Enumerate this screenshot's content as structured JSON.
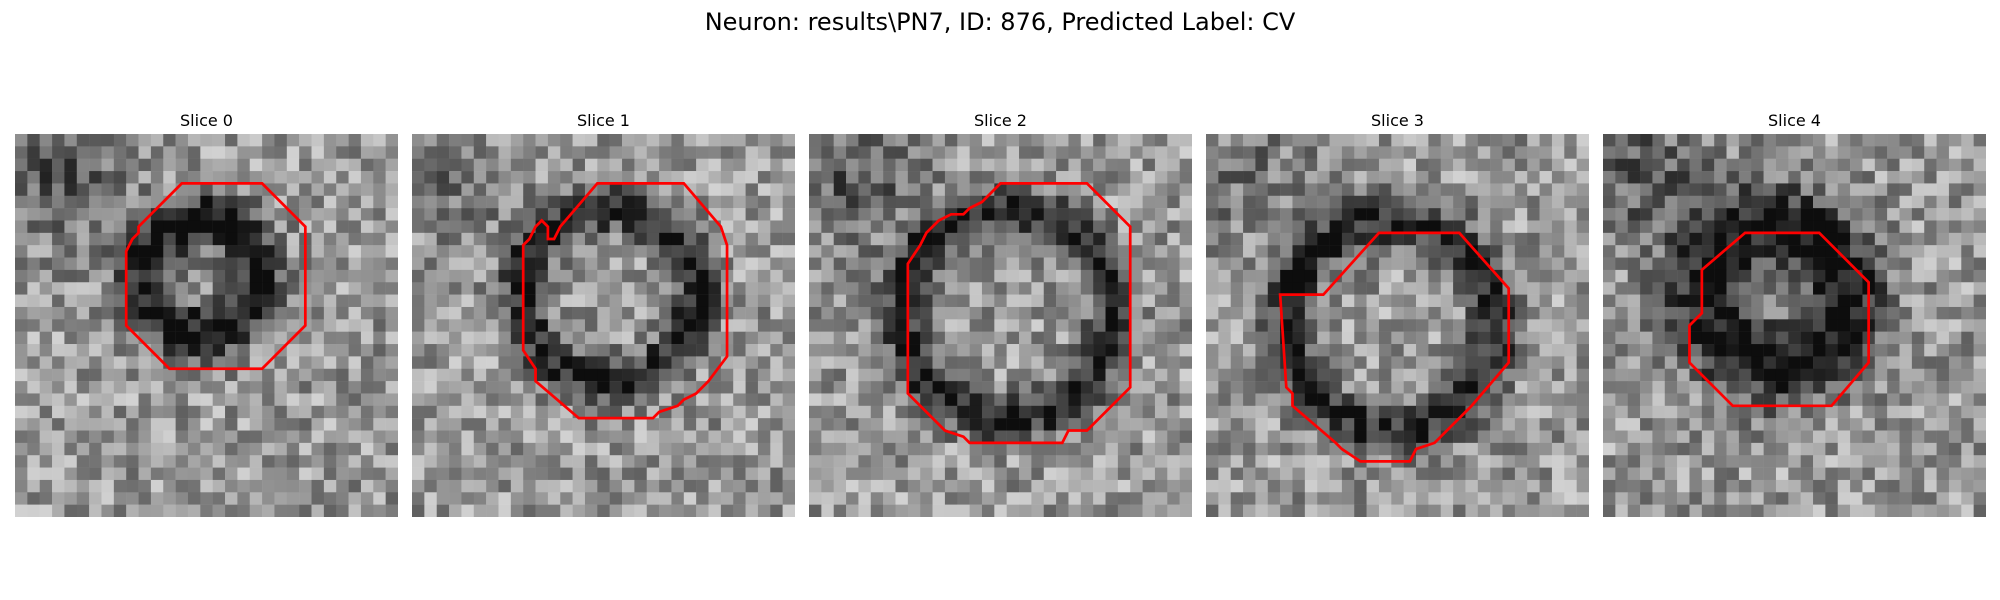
{
  "figure": {
    "title": "Neuron: results\\PN7, ID: 876, Predicted Label: CV",
    "contour_color": "#ff0000"
  },
  "slices": [
    {
      "label": "Slice 0"
    },
    {
      "label": "Slice 1"
    },
    {
      "label": "Slice 2"
    },
    {
      "label": "Slice 3"
    },
    {
      "label": "Slice 4"
    }
  ]
}
